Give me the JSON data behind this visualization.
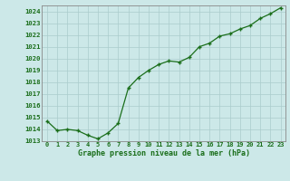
{
  "hours": [
    0,
    1,
    2,
    3,
    4,
    5,
    6,
    7,
    8,
    9,
    10,
    11,
    12,
    13,
    14,
    15,
    16,
    17,
    18,
    19,
    20,
    21,
    22,
    23
  ],
  "pressure": [
    1014.7,
    1013.9,
    1014.0,
    1013.9,
    1013.5,
    1013.2,
    1013.7,
    1014.5,
    1017.5,
    1018.4,
    1019.0,
    1019.5,
    1019.8,
    1019.7,
    1020.1,
    1021.0,
    1021.3,
    1021.9,
    1022.1,
    1022.5,
    1022.8,
    1023.4,
    1023.8,
    1024.3
  ],
  "ylim": [
    1013.0,
    1024.5
  ],
  "yticks": [
    1013,
    1014,
    1015,
    1016,
    1017,
    1018,
    1019,
    1020,
    1021,
    1022,
    1023,
    1024
  ],
  "line_color": "#1a6e1a",
  "marker": "+",
  "bg_color": "#cce8e8",
  "grid_color": "#aacccc",
  "xlabel": "Graphe pression niveau de la mer (hPa)",
  "tick_label_color": "#1a6e1a",
  "xlabel_color": "#1a6e1a",
  "xlabel_fontsize": 6.0,
  "tick_fontsize": 5.0,
  "ytick_fontsize": 5.2
}
